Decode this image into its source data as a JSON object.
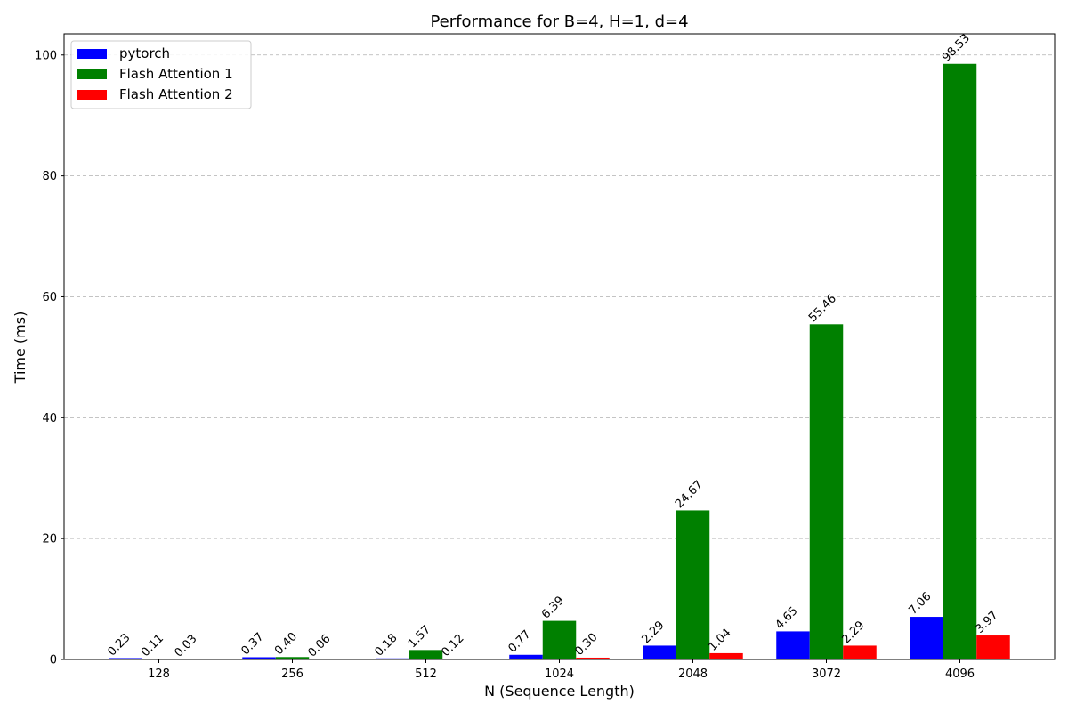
{
  "chart_data": {
    "type": "bar",
    "title": "Performance for B=4, H=1, d=4",
    "xlabel": "N (Sequence Length)",
    "ylabel": "Time (ms)",
    "categories": [
      "128",
      "256",
      "512",
      "1024",
      "2048",
      "3072",
      "4096"
    ],
    "series": [
      {
        "name": "pytorch",
        "color": "#0000ff",
        "values": [
          0.23,
          0.37,
          0.18,
          0.77,
          2.29,
          4.65,
          7.06
        ]
      },
      {
        "name": "Flash Attention 1",
        "color": "#008000",
        "values": [
          0.11,
          0.4,
          1.57,
          6.39,
          24.67,
          55.46,
          98.53
        ]
      },
      {
        "name": "Flash Attention 2",
        "color": "#ff0000",
        "values": [
          0.03,
          0.06,
          0.12,
          0.3,
          1.04,
          2.29,
          3.97
        ]
      }
    ],
    "ylim": [
      0,
      103.5
    ],
    "yticks": [
      0,
      20,
      40,
      60,
      80,
      100
    ],
    "grid": "y-dashed",
    "legend_position": "top-left"
  }
}
